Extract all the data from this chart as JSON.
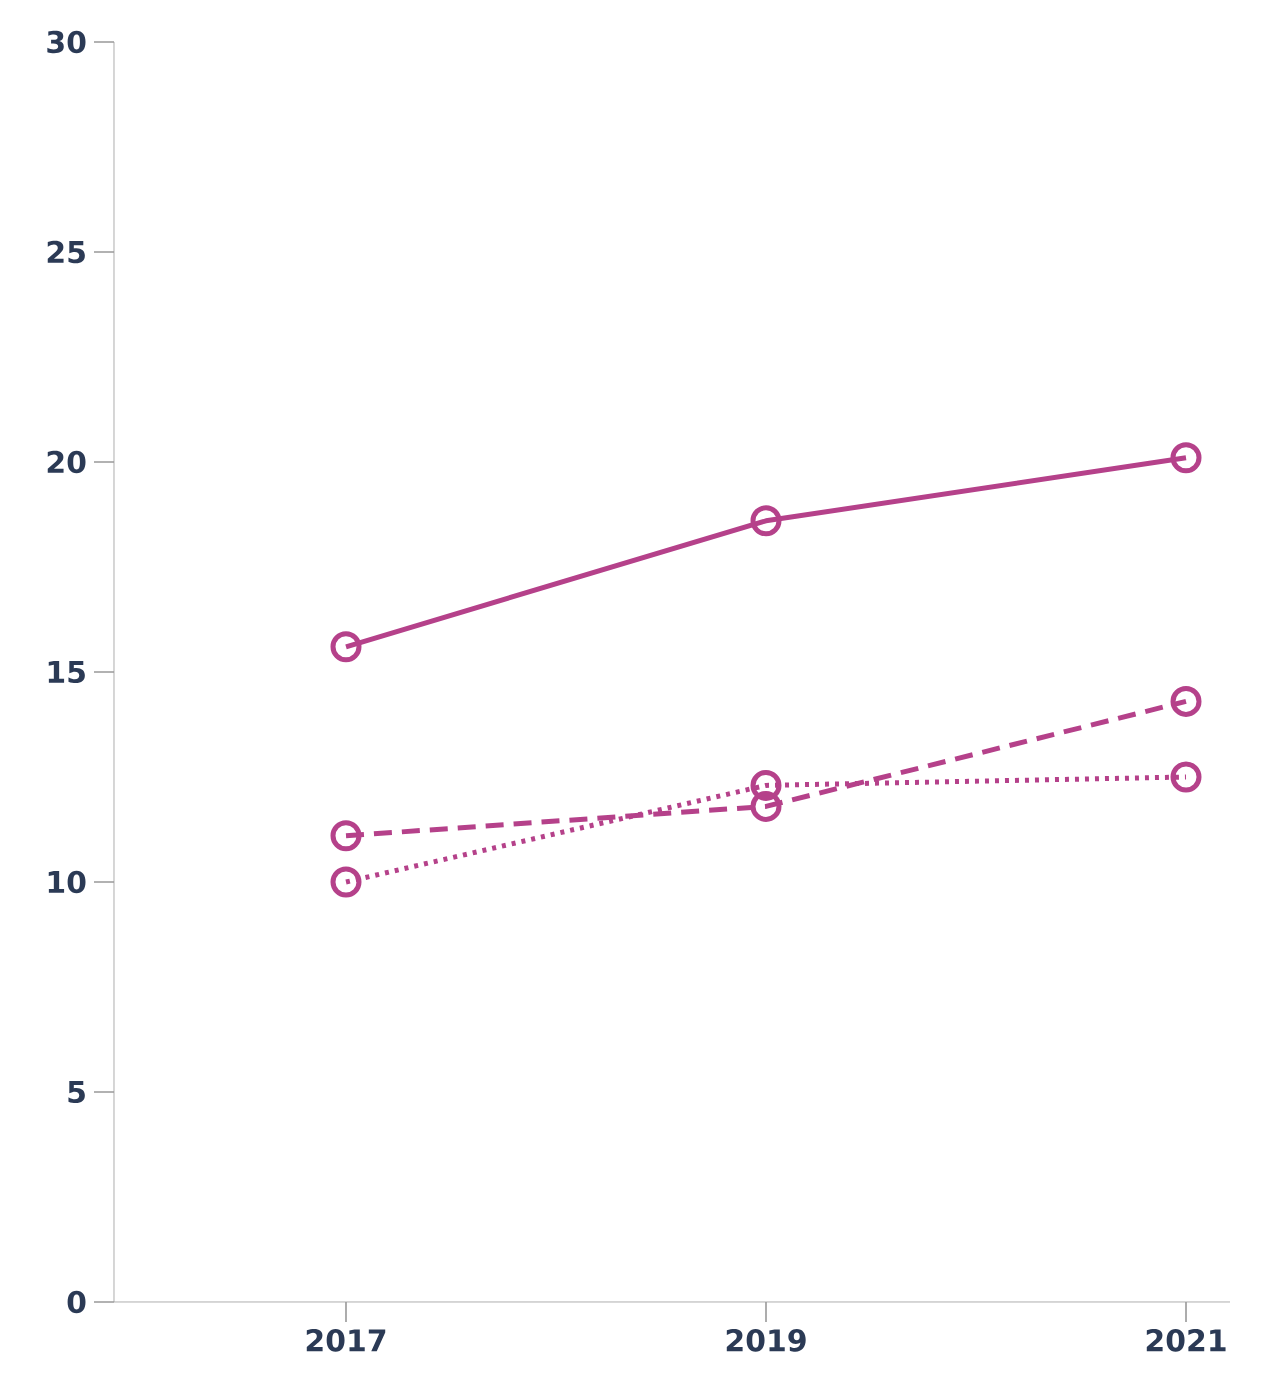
{
  "chart_data": {
    "type": "line",
    "categories": [
      "2017",
      "2019",
      "2021"
    ],
    "series": [
      {
        "color": "#b5418a",
        "line_style": "solid",
        "values": [
          15.6,
          18.6,
          20.1
        ]
      },
      {
        "color": "#b5418a",
        "line_style": "dashed",
        "values": [
          11.1,
          11.8,
          14.3
        ]
      },
      {
        "color": "#b5418a",
        "line_style": "dotted",
        "values": [
          10.0,
          12.3,
          12.5
        ]
      }
    ],
    "ylim": [
      0,
      30
    ],
    "yticks": [
      0,
      5,
      10,
      15,
      20,
      25,
      30
    ],
    "marker": "circle",
    "grid": false
  }
}
